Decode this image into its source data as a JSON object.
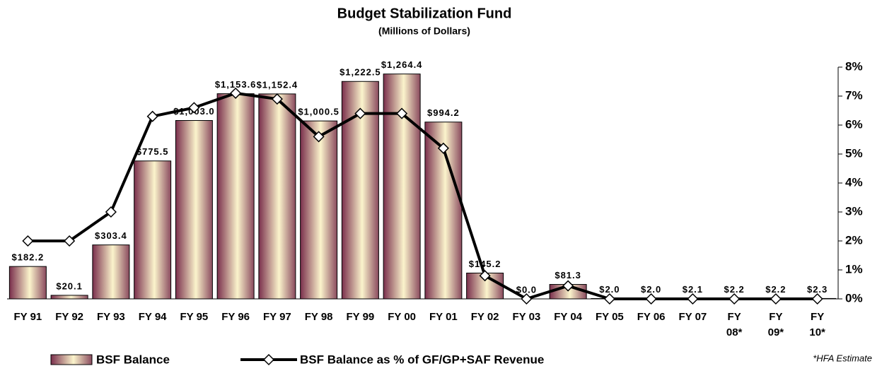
{
  "chart_data": {
    "type": "bar-line",
    "title": "Budget Stabilization Fund",
    "subtitle": "(Millions of Dollars)",
    "categories": [
      "FY 91",
      "FY 92",
      "FY 93",
      "FY 94",
      "FY 95",
      "FY 96",
      "FY 97",
      "FY 98",
      "FY 99",
      "FY 00",
      "FY 01",
      "FY 02",
      "FY 03",
      "FY 04",
      "FY 05",
      "FY 06",
      "FY 07",
      "FY\n08*",
      "FY\n09*",
      "FY\n10*"
    ],
    "ylim": [
      0,
      1303
    ],
    "y2lim": [
      0,
      8
    ],
    "y2ticks": [
      {
        "value": 0,
        "label": "0%"
      },
      {
        "value": 1,
        "label": "1%"
      },
      {
        "value": 2,
        "label": "2%"
      },
      {
        "value": 3,
        "label": "3%"
      },
      {
        "value": 4,
        "label": "4%"
      },
      {
        "value": 5,
        "label": "5%"
      },
      {
        "value": 6,
        "label": "6%"
      },
      {
        "value": 7,
        "label": "7%"
      },
      {
        "value": 8,
        "label": "8%"
      }
    ],
    "series": [
      {
        "name": "BSF Balance",
        "color": "#7a2f4c",
        "values": [
          182.2,
          20.1,
          303.4,
          775.5,
          1003.0,
          1153.6,
          1152.4,
          1000.5,
          1222.5,
          1264.4,
          994.2,
          145.2,
          0.0,
          81.3,
          2.0,
          2.0,
          2.1,
          2.2,
          2.2,
          2.3
        ],
        "value_labels": [
          "$182.2",
          "$20.1",
          "$303.4",
          "$775.5",
          "$1,003.0",
          "$1,153.6",
          "$1,152.4",
          "$1,000.5",
          "$1,222.5",
          "$1,264.4",
          "$994.2",
          "$145.2",
          "$0.0",
          "$81.3",
          "$2.0",
          "$2.0",
          "$2.1",
          "$2.2",
          "$2.2",
          "$2.3"
        ]
      },
      {
        "name": "BSF Balance as % of GF/GP+SAF Revenue",
        "color": "#000000",
        "axis": "y2",
        "values": [
          2.0,
          2.0,
          3.0,
          6.3,
          6.6,
          7.1,
          6.9,
          5.6,
          6.4,
          6.4,
          5.2,
          0.8,
          0.0,
          0.45,
          0.0,
          0.0,
          0.0,
          0.0,
          0.0,
          0.0
        ]
      }
    ],
    "annotation": "*HFA Estimate"
  }
}
